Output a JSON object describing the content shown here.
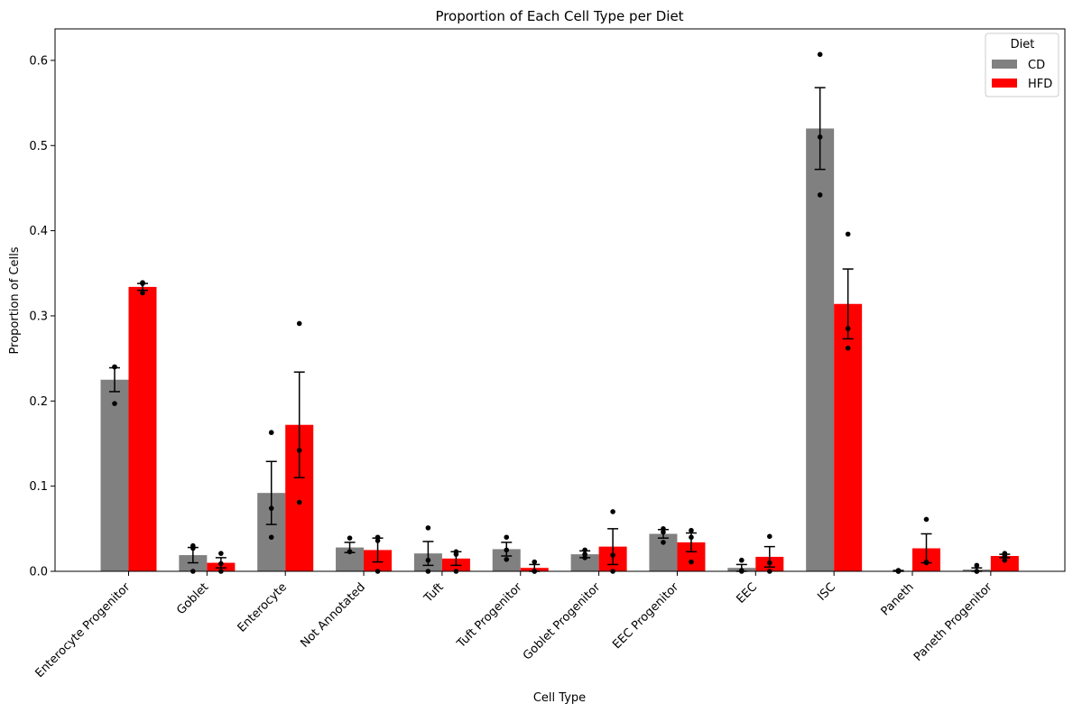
{
  "chart_data": {
    "type": "bar",
    "title": "Proportion of Each Cell Type per Diet",
    "xlabel": "Cell Type",
    "ylabel": "Proportion of Cells",
    "ylim": [
      0,
      0.637
    ],
    "yticks": [
      "0.0",
      "0.1",
      "0.2",
      "0.3",
      "0.4",
      "0.5",
      "0.6"
    ],
    "grid": false,
    "legend": {
      "title": "Diet",
      "position": "top-right"
    },
    "categories": [
      "Enterocyte Progenitor",
      "Goblet",
      "Enterocyte",
      "Not Annotated",
      "Tuft",
      "Tuft Progenitor",
      "Goblet Progenitor",
      "EEC Progenitor",
      "EEC",
      "ISC",
      "Paneth",
      "Paneth Progenitor"
    ],
    "series": [
      {
        "name": "CD",
        "color": "#808080",
        "values": [
          0.225,
          0.019,
          0.092,
          0.028,
          0.021,
          0.026,
          0.02,
          0.044,
          0.004,
          0.52,
          0.0005,
          0.002
        ],
        "error": [
          0.014,
          0.009,
          0.037,
          0.006,
          0.014,
          0.008,
          0.004,
          0.005,
          0.004,
          0.048,
          0.0005,
          0.002
        ],
        "points": [
          [
            0.24,
            0.24,
            0.197
          ],
          [
            0.03,
            0.027,
            0.0
          ],
          [
            0.163,
            0.074,
            0.04
          ],
          [
            0.039,
            0.023,
            0.023
          ],
          [
            0.051,
            0.013,
            0.0
          ],
          [
            0.04,
            0.025,
            0.014
          ],
          [
            0.025,
            0.02,
            0.016
          ],
          [
            0.05,
            0.046,
            0.034
          ],
          [
            0.013,
            0.001,
            0.0
          ],
          [
            0.607,
            0.51,
            0.442
          ],
          [
            0.001,
            0.0,
            0.0
          ],
          [
            0.007,
            0.0,
            0.0
          ]
        ]
      },
      {
        "name": "HFD",
        "color": "#ff0000",
        "values": [
          0.334,
          0.01,
          0.172,
          0.025,
          0.015,
          0.004,
          0.029,
          0.034,
          0.017,
          0.314,
          0.027,
          0.018
        ],
        "error": [
          0.004,
          0.006,
          0.062,
          0.014,
          0.008,
          0.004,
          0.021,
          0.011,
          0.012,
          0.041,
          0.017,
          0.002
        ],
        "points": [
          [
            0.339,
            0.338,
            0.327
          ],
          [
            0.021,
            0.009,
            0.0
          ],
          [
            0.291,
            0.142,
            0.081
          ],
          [
            0.04,
            0.036,
            0.0
          ],
          [
            0.023,
            0.02,
            0.0
          ],
          [
            0.011,
            0.0,
            0.0
          ],
          [
            0.07,
            0.019,
            0.0
          ],
          [
            0.048,
            0.04,
            0.011
          ],
          [
            0.041,
            0.01,
            0.0
          ],
          [
            0.396,
            0.285,
            0.262
          ],
          [
            0.061,
            0.011,
            0.01
          ],
          [
            0.021,
            0.018,
            0.013
          ]
        ]
      }
    ]
  }
}
